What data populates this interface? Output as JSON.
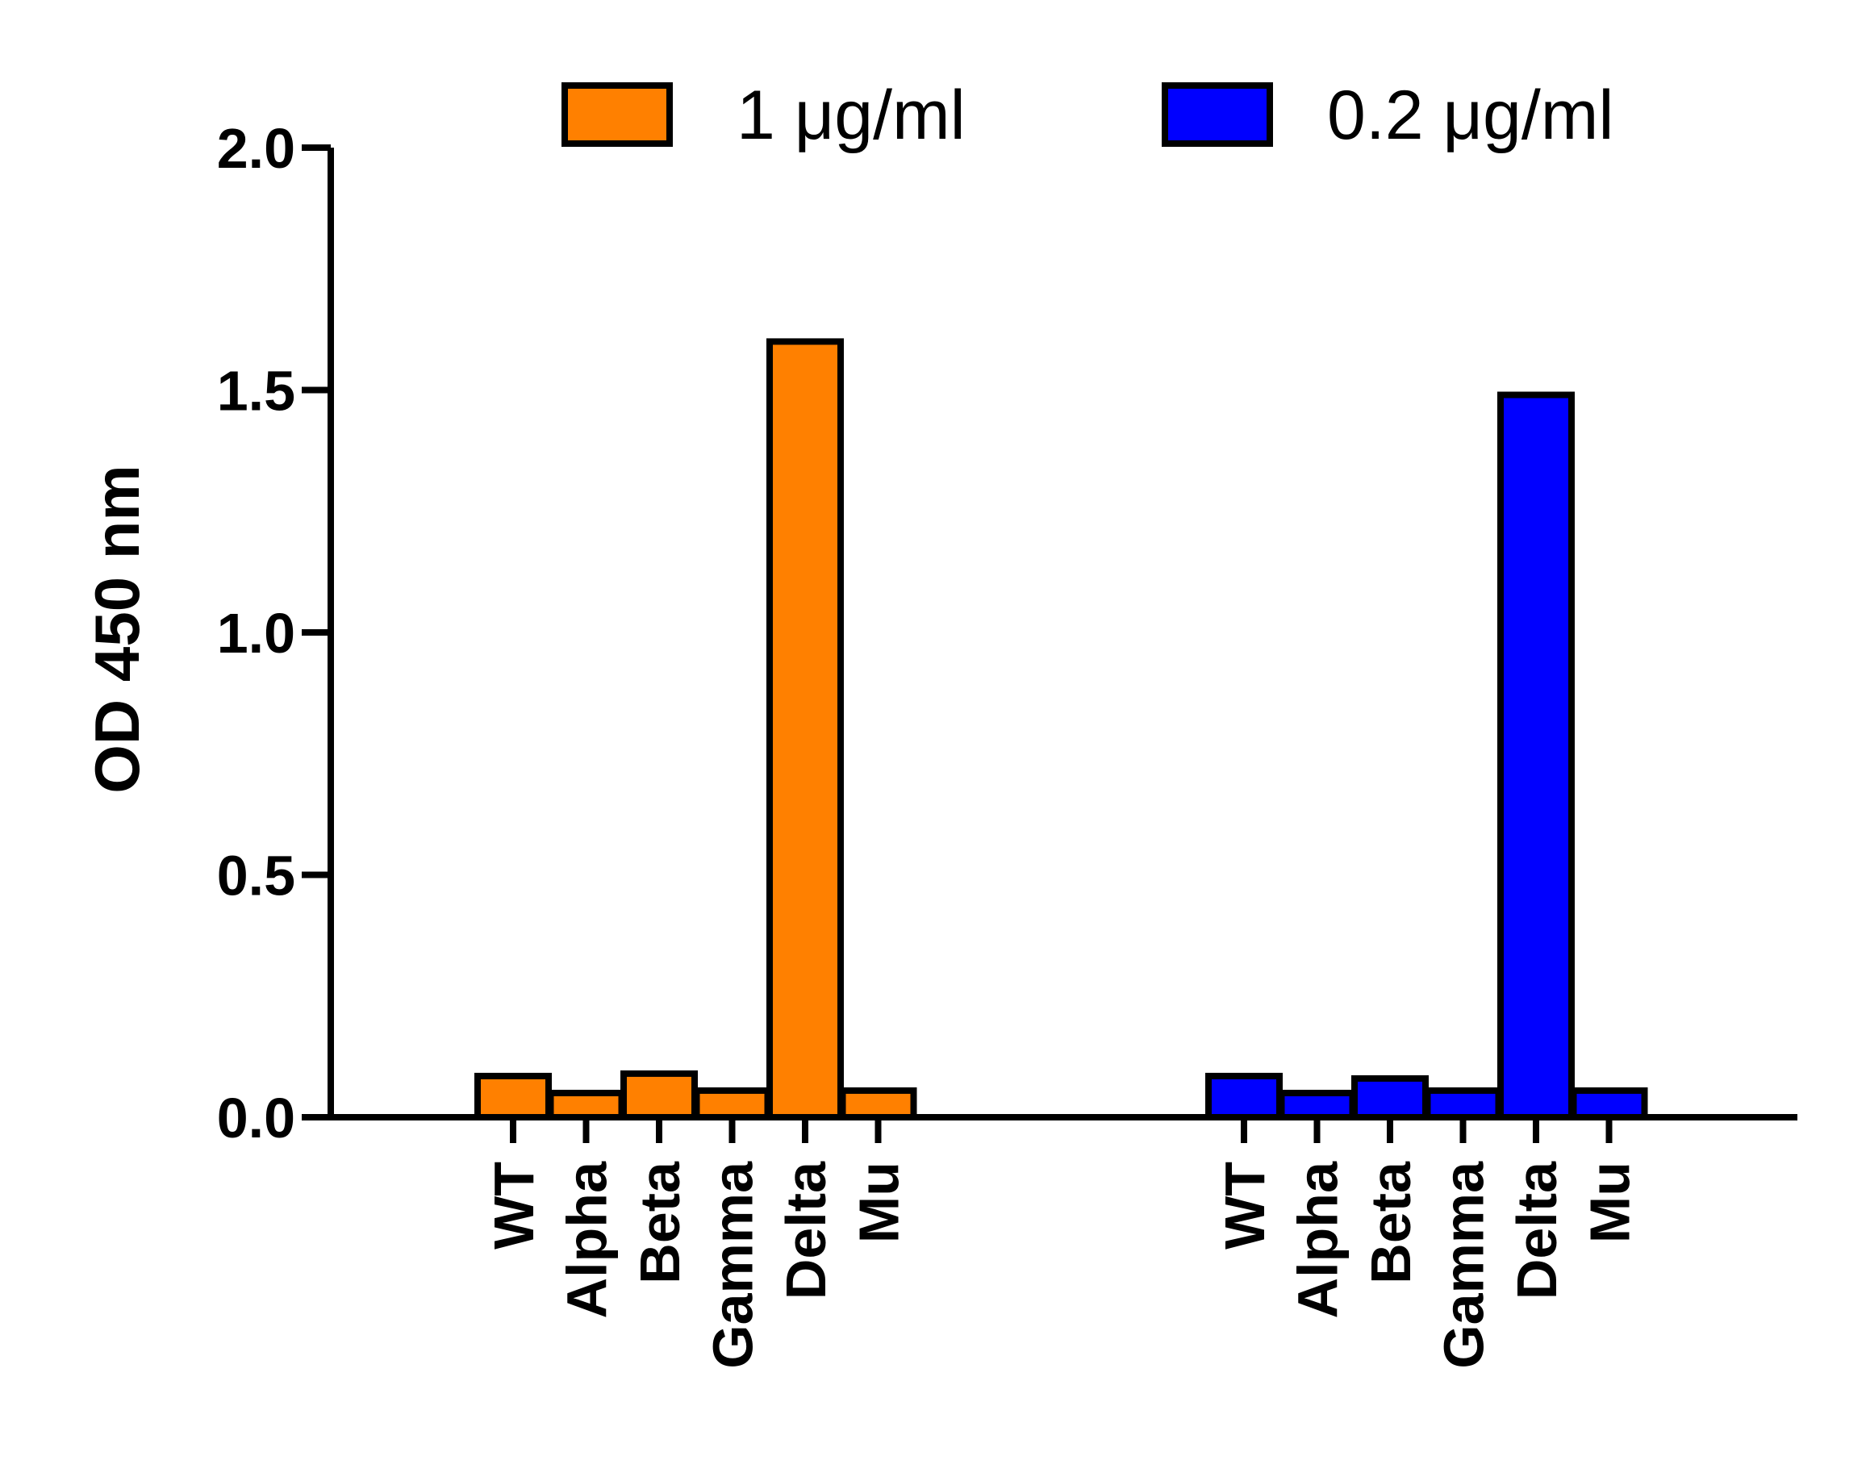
{
  "chart_data": {
    "type": "bar",
    "ylabel": "OD 450 nm",
    "xlabel": "",
    "ylim": [
      0,
      2.0
    ],
    "yticks": [
      "0.0",
      "0.5",
      "1.0",
      "1.5",
      "2.0"
    ],
    "ytick_values": [
      0,
      0.5,
      1.0,
      1.5,
      2.0
    ],
    "legend_position": "top",
    "groups": [
      {
        "name": "1 μg/ml",
        "color": "#FF8000",
        "categories": [
          "WT",
          "Alpha",
          "Beta",
          "Gamma",
          "Delta",
          "Mu"
        ],
        "values": [
          0.085,
          0.05,
          0.09,
          0.055,
          1.6,
          0.055
        ]
      },
      {
        "name": "0.2 μg/ml",
        "color": "#0000FF",
        "categories": [
          "WT",
          "Alpha",
          "Beta",
          "Gamma",
          "Delta",
          "Mu"
        ],
        "values": [
          0.085,
          0.05,
          0.08,
          0.055,
          1.49,
          0.055
        ]
      }
    ]
  }
}
